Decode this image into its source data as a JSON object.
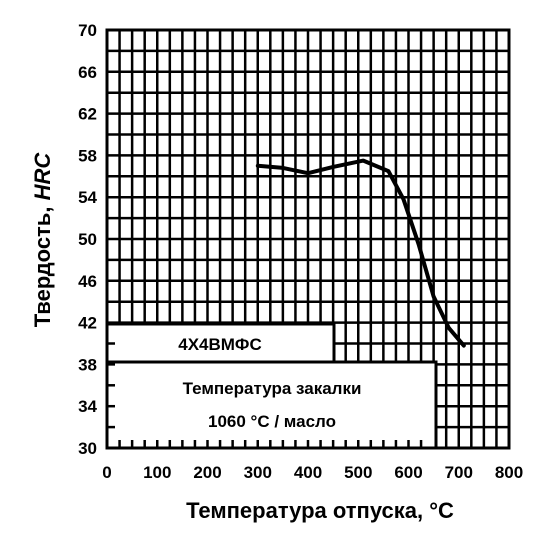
{
  "chart_data": {
    "type": "line",
    "title": "",
    "xlabel": "Температура отпуска, °С",
    "ylabel_text": "Твердость, ",
    "ylabel_unit": "HRC",
    "xlim": [
      0,
      800
    ],
    "ylim": [
      30,
      70
    ],
    "x_ticks": [
      0,
      100,
      200,
      300,
      400,
      500,
      600,
      700,
      800
    ],
    "y_ticks": [
      30,
      34,
      38,
      42,
      46,
      50,
      54,
      58,
      62,
      66,
      70
    ],
    "grid": true,
    "series": [
      {
        "x": [
          300,
          350,
          400,
          450,
          510,
          560,
          590,
          620,
          650,
          680,
          710
        ],
        "y": [
          57.0,
          56.8,
          56.3,
          56.9,
          57.5,
          56.5,
          53.8,
          49.5,
          44.5,
          41.5,
          39.8
        ]
      }
    ],
    "annotations": {
      "steel_grade": "4Х4ВМФС",
      "quench_line1": "Температура закалки",
      "quench_line2": "1060 °С / масло"
    }
  }
}
